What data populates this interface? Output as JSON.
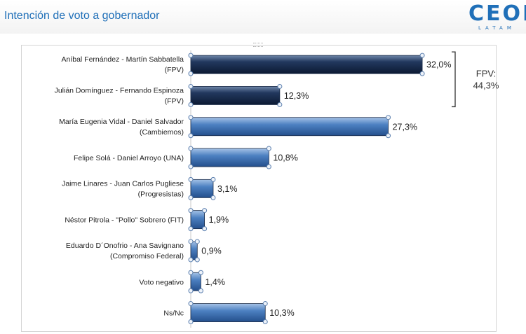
{
  "page": {
    "title": "Intención de voto a gobernador",
    "logo": {
      "main": "CEOP",
      "sub": "LATAM",
      "color": "#1f6fb8"
    }
  },
  "chart_data": {
    "type": "bar",
    "orientation": "horizontal",
    "title": "",
    "xlabel": "",
    "ylabel": "",
    "xlim": [
      0,
      35
    ],
    "grid": false,
    "legend": "none",
    "value_suffix": "%",
    "categories": [
      [
        "Aníbal Fernández - Martín Sabbatella",
        "(FPV)"
      ],
      [
        "Julián Domínguez - Fernando Espinoza",
        "(FPV)"
      ],
      [
        "María Eugenia Vidal - Daniel Salvador",
        "(Cambiemos)"
      ],
      [
        "Felipe Solá - Daniel Arroyo (UNA)"
      ],
      [
        "Jaime Linares - Juan Carlos Pugliese",
        "(Progresistas)"
      ],
      [
        "Néstor Pitrola - \"Pollo\" Sobrero (FIT)"
      ],
      [
        "Eduardo D´Onofrio - Ana Savignano",
        "(Compromiso Federal)"
      ],
      [
        "Voto negativo"
      ],
      [
        "Ns/Nc"
      ]
    ],
    "values": [
      32.0,
      12.3,
      27.3,
      10.8,
      3.1,
      1.9,
      0.9,
      1.4,
      10.3
    ],
    "value_labels": [
      "32,0%",
      "12,3%",
      "27,3%",
      "10,8%",
      "3,1%",
      "1,9%",
      "0,9%",
      "1,4%",
      "10,3%"
    ],
    "bar_styles": [
      "dark",
      "dark",
      "blue",
      "blue",
      "blue",
      "blue",
      "blue",
      "blue",
      "blue"
    ],
    "colors": {
      "dark": "#1b2d4f",
      "blue": "#3f73b6"
    },
    "annotation": {
      "lines": [
        "FPV:",
        "44,3%"
      ],
      "spans": [
        0,
        1
      ]
    }
  }
}
